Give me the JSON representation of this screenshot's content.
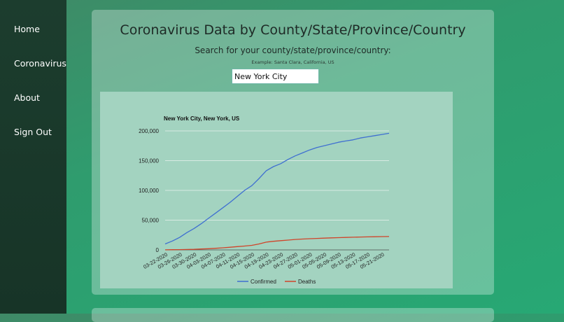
{
  "nav": {
    "items": [
      {
        "label": "Home"
      },
      {
        "label": "Coronavirus"
      },
      {
        "label": "About"
      },
      {
        "label": "Sign Out"
      }
    ]
  },
  "main": {
    "title": "Coronavirus Data by County/State/Province/Country",
    "subtitle": "Search for your county/state/province/country:",
    "example": "Example: Santa Clara, California, US",
    "search_value": "New York City"
  },
  "colors": {
    "confirmed": "#3f6fd1",
    "deaths": "#d0442a"
  },
  "chart_data": {
    "type": "line",
    "title": "New York City, New York, US",
    "xlabel": "",
    "ylabel": "",
    "ylim": [
      0,
      200000
    ],
    "yticks": [
      0,
      50000,
      100000,
      150000,
      200000
    ],
    "ytick_labels": [
      "0",
      "50,000",
      "100,000",
      "150,000",
      "200,000"
    ],
    "xtick_labels": [
      "03-22-2020",
      "03-26-2020",
      "03-30-2020",
      "04-03-2020",
      "04-07-2020",
      "04-11-2020",
      "04-15-2020",
      "04-19-2020",
      "04-23-2020",
      "04-27-2020",
      "05-01-2020",
      "05-05-2020",
      "05-09-2020",
      "05-13-2020",
      "05-17-2020",
      "05-21-2020"
    ],
    "x": [
      "03-22-2020",
      "03-24-2020",
      "03-26-2020",
      "03-28-2020",
      "03-30-2020",
      "04-01-2020",
      "04-03-2020",
      "04-05-2020",
      "04-07-2020",
      "04-09-2020",
      "04-11-2020",
      "04-13-2020",
      "04-15-2020",
      "04-17-2020",
      "04-19-2020",
      "04-21-2020",
      "04-23-2020",
      "04-25-2020",
      "04-27-2020",
      "04-29-2020",
      "05-01-2020",
      "05-03-2020",
      "05-05-2020",
      "05-07-2020",
      "05-09-2020",
      "05-11-2020",
      "05-13-2020",
      "05-15-2020",
      "05-17-2020",
      "05-19-2020",
      "05-21-2020",
      "05-23-2020"
    ],
    "series": [
      {
        "name": "Confirmed",
        "values": [
          10000,
          15000,
          21000,
          29000,
          36000,
          44000,
          53000,
          62000,
          71000,
          80000,
          90000,
          100000,
          108000,
          120000,
          133000,
          140000,
          145000,
          152000,
          158000,
          163000,
          168000,
          172000,
          175000,
          178000,
          181000,
          183000,
          185000,
          188000,
          190000,
          192000,
          194000,
          196000
        ]
      },
      {
        "name": "Deaths",
        "values": [
          100,
          300,
          500,
          700,
          1000,
          1500,
          2000,
          2700,
          3500,
          4500,
          5500,
          6500,
          7600,
          10000,
          13000,
          14500,
          15500,
          16500,
          17500,
          18200,
          18800,
          19300,
          19800,
          20200,
          20600,
          21000,
          21300,
          21600,
          21900,
          22100,
          22300,
          22500
        ]
      }
    ],
    "legend": "bottom"
  }
}
